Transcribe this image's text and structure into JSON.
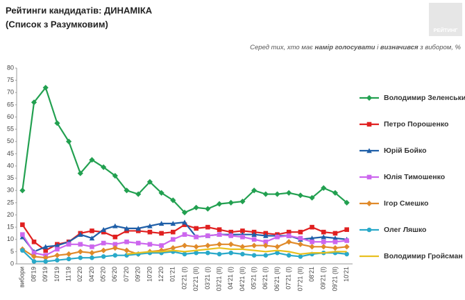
{
  "chart_data": {
    "type": "line",
    "title": [
      "Рейтинги кандидатів: ДИНАМІКА",
      "(Список з Разумковим)"
    ],
    "logo": "РЕЙТИНГ",
    "subtitle": [
      "Серед тих, хто має ",
      "намір голосувати",
      " і ",
      "визначився",
      " з вибором, %"
    ],
    "categories": [
      "вибори",
      "08'19",
      "09'19",
      "10'19",
      "11'19",
      "02'20",
      "04'20",
      "05'20",
      "06'20",
      "07'20",
      "09'20",
      "10'20",
      "12'20",
      "01'21",
      "02'21 (I)",
      "02'21 (II)",
      "03'21 (I)",
      "03'21 (II)",
      "04'21 (I)",
      "04'21 (II)",
      "05'21 (I)",
      "06'21 (I)",
      "06'21 (II)",
      "07'21 (I)",
      "07'21 (II)",
      "08'21",
      "09'21 (I)",
      "09'21 (II)",
      "10'21"
    ],
    "ylim": [
      0,
      80
    ],
    "yticks": [
      0,
      5,
      10,
      15,
      20,
      25,
      30,
      35,
      40,
      45,
      50,
      55,
      60,
      65,
      70,
      75,
      80
    ],
    "grid": false,
    "series": [
      {
        "name": "Володимир Зеленський",
        "color": "#22a050",
        "marker": "diamond",
        "values": [
          30,
          66,
          72,
          57.5,
          50,
          37,
          42.5,
          39.5,
          36,
          30,
          28.5,
          33.5,
          29,
          26,
          21,
          23,
          22.5,
          24.5,
          25,
          25.5,
          30,
          28.5,
          28.5,
          29,
          28,
          27,
          31,
          29,
          25
        ]
      },
      {
        "name": "Петро Порошенко",
        "color": "#e02020",
        "marker": "square",
        "values": [
          16,
          9,
          5.5,
          8,
          9,
          12.5,
          13.5,
          13,
          11,
          13.5,
          13.5,
          13,
          12.5,
          13,
          16,
          14.5,
          15,
          14,
          13,
          13.5,
          13,
          12.5,
          12,
          13,
          13,
          15,
          13,
          12.5,
          14
        ]
      },
      {
        "name": "Юрій Бойко",
        "color": "#1f5fa8",
        "marker": "triangle",
        "values": [
          11,
          5,
          7,
          7.5,
          9,
          12,
          10.5,
          14,
          15.5,
          14.5,
          14.5,
          15.5,
          16.5,
          16.5,
          17,
          11,
          11.5,
          12,
          12,
          12,
          12,
          11.5,
          11.5,
          11.5,
          10,
          10.5,
          11,
          10.5,
          10
        ]
      },
      {
        "name": "Юлія Тимошенко",
        "color": "#cc66ee",
        "marker": "square",
        "values": [
          12,
          4.5,
          3.5,
          6,
          8,
          8,
          7,
          8.5,
          8,
          9,
          8.5,
          8,
          7.5,
          10,
          12,
          11,
          11.5,
          12,
          11.5,
          11,
          10,
          9,
          11,
          11.5,
          10.5,
          9,
          9,
          9,
          9.5
        ]
      },
      {
        "name": "Ігор Смешко",
        "color": "#e08a2a",
        "marker": "diamond",
        "values": [
          6,
          3,
          2.5,
          3.5,
          4,
          5,
          4.5,
          5.5,
          6.5,
          5.5,
          4,
          5,
          5.5,
          6.5,
          7.5,
          7,
          7.5,
          8,
          8,
          7,
          7.5,
          7.5,
          7,
          9,
          8,
          7,
          7,
          6.5,
          7
        ]
      },
      {
        "name": "Олег Ляшко",
        "color": "#29a9c9",
        "marker": "circle",
        "values": [
          5.5,
          1,
          1,
          1.5,
          2,
          2.5,
          2.5,
          3,
          3.5,
          3.5,
          4,
          4.5,
          4.5,
          5,
          4,
          4.5,
          4.5,
          4,
          4.5,
          4,
          3.5,
          3.5,
          4.5,
          3.5,
          3,
          4,
          4.5,
          4.5,
          4
        ]
      },
      {
        "name": "Володимир Гройсман",
        "color": "#e8c020",
        "marker": "none",
        "values": [
          null,
          null,
          null,
          null,
          null,
          null,
          null,
          null,
          null,
          4,
          4.5,
          5,
          5,
          5.5,
          5,
          5.5,
          6,
          6.5,
          6,
          6,
          5.5,
          5,
          5.5,
          5,
          4,
          4.5,
          4.5,
          5,
          5
        ]
      }
    ]
  }
}
